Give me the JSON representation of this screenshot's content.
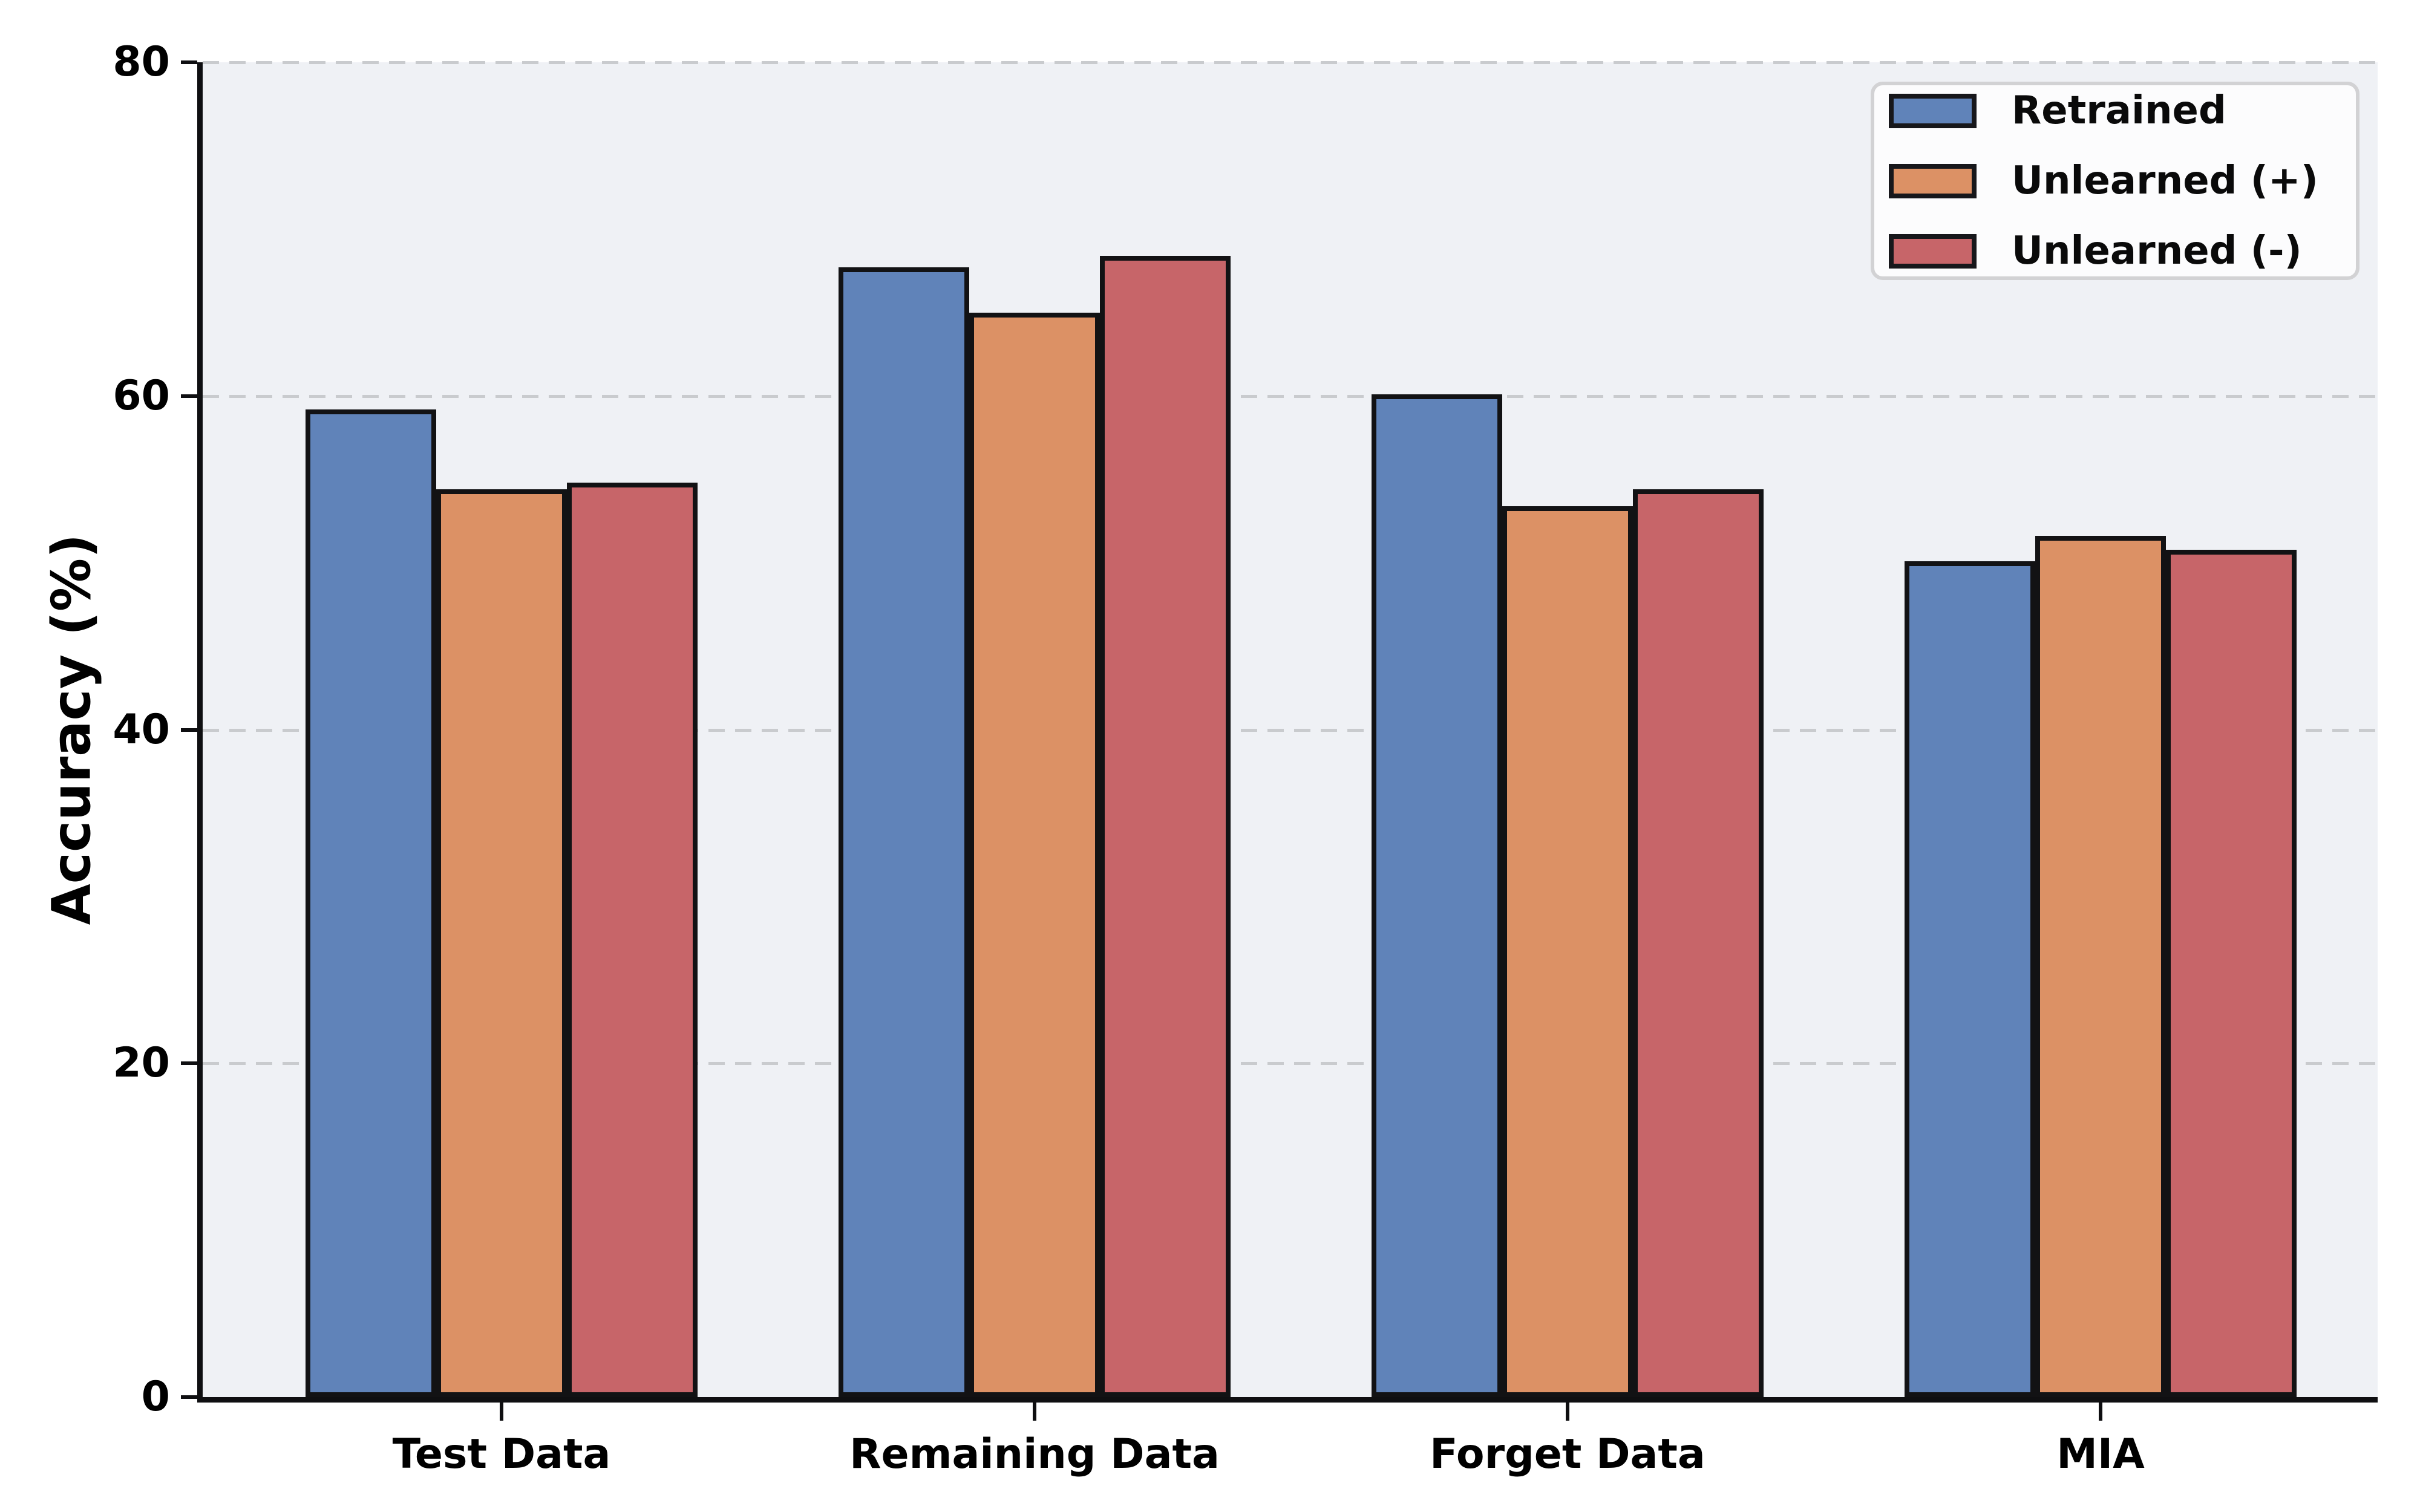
{
  "chart_data": {
    "type": "bar",
    "title": "",
    "xlabel": "",
    "ylabel": "Accuracy (%)",
    "categories": [
      "Test Data",
      "Remaining Data",
      "Forget Data",
      "MIA"
    ],
    "series": [
      {
        "name": "Retrained",
        "color": "#6083B9",
        "values": [
          59.2,
          67.7,
          60.1,
          50.1
        ]
      },
      {
        "name": "Unlearned (+)",
        "color": "#DC9165",
        "values": [
          54.4,
          65.0,
          53.4,
          51.6
        ]
      },
      {
        "name": "Unlearned (-)",
        "color": "#C76569",
        "values": [
          54.8,
          68.4,
          54.4,
          50.8
        ]
      }
    ],
    "ylim": [
      0,
      80
    ],
    "yticks": [
      0,
      20,
      40,
      60,
      80
    ],
    "ytick_labels": [
      "0",
      "20",
      "40",
      "60",
      "80"
    ],
    "grid": "horizontal-dashed",
    "legend_position": "upper-right",
    "colors": {
      "plot_background": "#EFF1F5",
      "figure_background": "#FFFFFF",
      "gridline": "#C9CBCE",
      "bar_edge": "#121214",
      "spine": "#0F0F11",
      "legend_background": "#FCFCFD",
      "legend_border": "#D2D2D4"
    }
  }
}
